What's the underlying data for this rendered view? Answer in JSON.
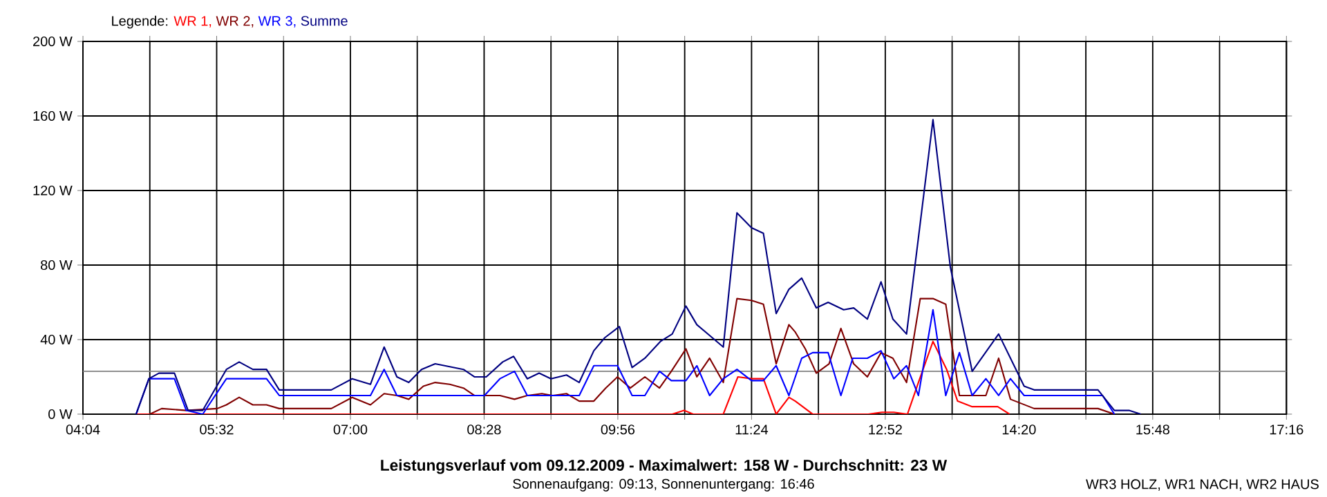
{
  "chart_data": {
    "type": "line",
    "title": "Leistungsverlauf vom 09.12.2009 - Maximalwert: 158 W - Durchschnitt: 23 W",
    "subtitle": "Sonnenaufgang: 09:13, Sonnenuntergang: 16:46",
    "annotations": [
      "WR3 HOLZ, WR1 NACH, WR2 HAUS"
    ],
    "legend_title": "Legende:",
    "legend": "top left",
    "grid": true,
    "xlim": [
      4.0667,
      17.2667
    ],
    "ylim": [
      0,
      200
    ],
    "xticks": [
      {
        "value": 4.0667,
        "label": "04:04"
      },
      {
        "value": 4.8,
        "label": null
      },
      {
        "value": 5.5333,
        "label": "05:32"
      },
      {
        "value": 6.2667,
        "label": null
      },
      {
        "value": 7,
        "label": "07:00"
      },
      {
        "value": 7.7333,
        "label": null
      },
      {
        "value": 8.4667,
        "label": "08:28"
      },
      {
        "value": 9.2,
        "label": null
      },
      {
        "value": 9.9333,
        "label": "09:56"
      },
      {
        "value": 10.6667,
        "label": null
      },
      {
        "value": 11.4,
        "label": "11:24"
      },
      {
        "value": 12.1333,
        "label": null
      },
      {
        "value": 12.8667,
        "label": "12:52"
      },
      {
        "value": 13.6,
        "label": null
      },
      {
        "value": 14.3333,
        "label": "14:20"
      },
      {
        "value": 15.0667,
        "label": null
      },
      {
        "value": 15.8,
        "label": "15:48"
      },
      {
        "value": 16.5333,
        "label": null
      },
      {
        "value": 17.2667,
        "label": "17:16"
      }
    ],
    "yticks": [
      {
        "value": 0,
        "label": "0 W"
      },
      {
        "value": 40,
        "label": "40 W"
      },
      {
        "value": 80,
        "label": "80 W"
      },
      {
        "value": 120,
        "label": "120 W"
      },
      {
        "value": 160,
        "label": "160 W"
      },
      {
        "value": 200,
        "label": "200 W"
      }
    ],
    "ref_lines": [
      {
        "axis": "y",
        "value": 23,
        "color": "#808080"
      }
    ],
    "series": [
      {
        "name": "WR 1,",
        "color": "#ff0000",
        "x": [
          4.65,
          10.53,
          10.66,
          10.76,
          11.09,
          11.25,
          11.4,
          11.53,
          11.67,
          11.81,
          11.88,
          12.07,
          12.68,
          12.83,
          12.96,
          13.11,
          13.23,
          13.39,
          13.54,
          13.66,
          13.82,
          14.1,
          14.23
        ],
        "values": [
          0,
          0,
          2,
          0,
          0,
          20,
          19,
          19,
          0,
          9,
          7,
          0,
          0,
          1,
          1,
          0,
          17,
          39,
          24,
          7,
          4,
          4,
          0
        ]
      },
      {
        "name": "WR 2,",
        "color": "#800000",
        "x": [
          4.8,
          4.93,
          5.2,
          5.54,
          5.64,
          5.78,
          5.93,
          6.08,
          6.22,
          6.79,
          7.02,
          7.22,
          7.37,
          7.51,
          7.64,
          7.8,
          7.93,
          8.09,
          8.24,
          8.36,
          8.64,
          8.8,
          8.94,
          9.1,
          9.22,
          9.37,
          9.51,
          9.67,
          9.8,
          9.93,
          10.07,
          10.23,
          10.39,
          10.52,
          10.68,
          10.8,
          10.94,
          11.09,
          11.24,
          11.4,
          11.53,
          11.67,
          11.81,
          11.88,
          11.99,
          12.11,
          12.25,
          12.38,
          12.52,
          12.67,
          12.82,
          12.95,
          13.1,
          13.25,
          13.39,
          13.53,
          13.68,
          13.97,
          14.11,
          14.24,
          14.5,
          15.2,
          15.38
        ],
        "values": [
          0,
          3,
          2,
          3,
          5,
          9,
          5,
          5,
          3,
          3,
          9,
          5,
          11,
          10,
          8,
          15,
          17,
          16,
          14,
          10,
          10,
          8,
          10,
          11,
          10,
          11,
          7,
          7,
          14,
          20,
          14,
          20,
          14,
          23,
          35,
          20,
          30,
          17,
          62,
          61,
          59,
          27,
          48,
          44,
          35,
          22,
          27,
          46,
          27,
          20,
          33,
          30,
          17,
          62,
          62,
          59,
          10,
          10,
          30,
          8,
          3,
          3,
          0
        ]
      },
      {
        "name": "WR 3,",
        "color": "#0000ff",
        "x": [
          4.65,
          4.79,
          5.07,
          5.2,
          5.38,
          5.64,
          6.08,
          6.22,
          7.22,
          7.37,
          7.51,
          8.24,
          8.47,
          8.64,
          8.8,
          8.94,
          9.51,
          9.67,
          9.93,
          10.09,
          10.23,
          10.39,
          10.52,
          10.68,
          10.8,
          10.94,
          11.09,
          11.24,
          11.4,
          11.53,
          11.67,
          11.81,
          11.95,
          12.07,
          12.24,
          12.38,
          12.51,
          12.67,
          12.82,
          12.96,
          13.1,
          13.23,
          13.39,
          13.53,
          13.68,
          13.82,
          13.97,
          14.11,
          14.24,
          14.39,
          15.25,
          15.38
        ],
        "values": [
          0,
          19,
          19,
          2,
          0,
          19,
          19,
          10,
          10,
          24,
          10,
          10,
          10,
          19,
          23,
          10,
          10,
          26,
          26,
          10,
          10,
          23,
          18,
          18,
          26,
          10,
          19,
          24,
          18,
          18,
          26,
          10,
          30,
          33,
          33,
          10,
          30,
          30,
          34,
          19,
          26,
          10,
          56,
          10,
          33,
          10,
          19,
          10,
          19,
          10,
          10,
          0
        ]
      },
      {
        "name": "Summe",
        "color": "#000080",
        "x": [
          4.65,
          4.79,
          4.9,
          5.07,
          5.22,
          5.38,
          5.64,
          5.78,
          5.93,
          6.08,
          6.22,
          6.79,
          7.02,
          7.22,
          7.37,
          7.51,
          7.64,
          7.78,
          7.93,
          8.24,
          8.36,
          8.49,
          8.67,
          8.79,
          8.94,
          9.07,
          9.2,
          9.37,
          9.51,
          9.67,
          9.79,
          9.95,
          10.09,
          10.23,
          10.4,
          10.53,
          10.68,
          10.8,
          11.09,
          11.24,
          11.4,
          11.53,
          11.67,
          11.81,
          11.95,
          12.11,
          12.24,
          12.41,
          12.52,
          12.67,
          12.82,
          12.95,
          13.1,
          13.39,
          13.58,
          13.82,
          14.11,
          14.39,
          14.5,
          15.2,
          15.38,
          15.54,
          15.67
        ],
        "values": [
          0,
          19,
          22,
          22,
          2,
          2,
          24,
          28,
          24,
          24,
          13,
          13,
          19,
          16,
          36,
          20,
          17,
          24,
          27,
          24,
          20,
          20,
          28,
          31,
          19,
          22,
          19,
          21,
          17,
          34,
          41,
          47,
          25,
          30,
          39,
          43,
          58,
          48,
          36,
          108,
          100,
          97,
          54,
          67,
          73,
          57,
          60,
          56,
          57,
          51,
          71,
          51,
          43,
          158,
          79,
          23,
          43,
          15,
          13,
          13,
          2,
          2,
          0
        ]
      }
    ]
  }
}
